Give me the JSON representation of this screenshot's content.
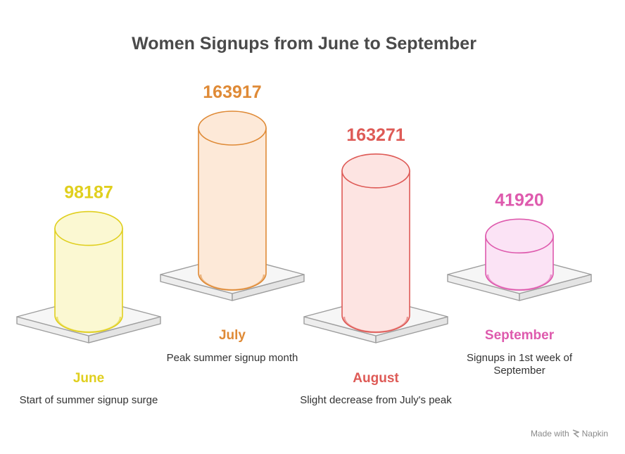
{
  "chart_data": {
    "type": "bar",
    "title": "Women Signups from June to September",
    "categories": [
      "June",
      "July",
      "August",
      "September"
    ],
    "values": [
      98187,
      163917,
      163271,
      41920
    ],
    "descriptions": [
      "Start of summer signup surge",
      "Peak summer signup month",
      "Slight decrease from July's peak",
      "Signups in 1st week of September"
    ],
    "colors": {
      "stroke": [
        "#e0cf1e",
        "#df8a36",
        "#de5a56",
        "#de5aad"
      ],
      "fill": [
        "#fbf8d2",
        "#fde9d8",
        "#fde4e2",
        "#fbe3f5"
      ]
    },
    "xlabel": "",
    "ylabel": ""
  },
  "footer": {
    "made_with": "Made with",
    "brand": "Napkin"
  }
}
